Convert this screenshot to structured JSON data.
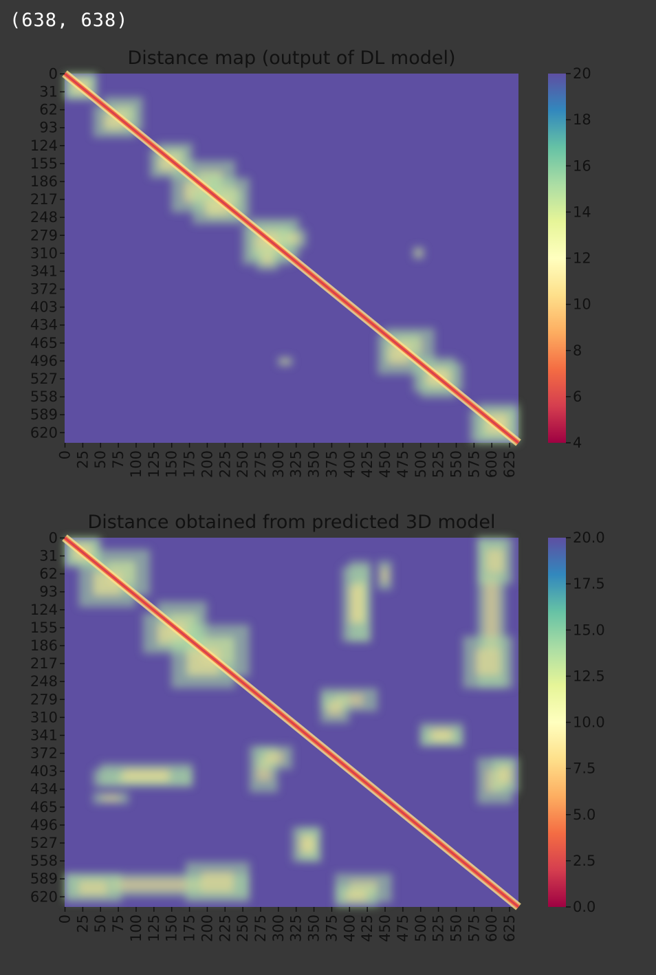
{
  "output_text": "(638, 638)",
  "chart_data": [
    {
      "type": "heatmap",
      "title": "Distance map (output of DL model)",
      "matrix_size": 638,
      "y_ticks": [
        0,
        31,
        62,
        93,
        124,
        155,
        186,
        217,
        248,
        279,
        310,
        341,
        372,
        403,
        434,
        465,
        496,
        527,
        558,
        589,
        620
      ],
      "x_ticks": [
        0,
        25,
        50,
        75,
        100,
        125,
        150,
        175,
        200,
        225,
        250,
        275,
        300,
        325,
        350,
        375,
        400,
        425,
        450,
        475,
        500,
        525,
        550,
        575,
        600,
        625
      ],
      "colorbar": {
        "min": 4,
        "max": 20,
        "ticks": [
          "4",
          "6",
          "8",
          "10",
          "12",
          "14",
          "16",
          "18",
          "20"
        ],
        "colormap": "Spectral"
      },
      "contact_regions": [
        {
          "x": [
            0,
            45
          ],
          "y": [
            0,
            45
          ]
        },
        {
          "x": [
            55,
            110
          ],
          "y": [
            40,
            100
          ]
        },
        {
          "x": [
            130,
            180
          ],
          "y": [
            120,
            170
          ]
        },
        {
          "x": [
            170,
            240
          ],
          "y": [
            150,
            220
          ]
        },
        {
          "x": [
            200,
            260
          ],
          "y": [
            180,
            250
          ]
        },
        {
          "x": [
            260,
            330
          ],
          "y": [
            250,
            320
          ]
        },
        {
          "x": [
            300,
            340
          ],
          "y": [
            270,
            300
          ]
        },
        {
          "x": [
            450,
            520
          ],
          "y": [
            440,
            500
          ]
        },
        {
          "x": [
            500,
            550
          ],
          "y": [
            490,
            560
          ]
        },
        {
          "x": [
            570,
            638
          ],
          "y": [
            580,
            638
          ]
        },
        {
          "x": [
            490,
            505
          ],
          "y": [
            300,
            320
          ]
        }
      ]
    },
    {
      "type": "heatmap",
      "title": "Distance obtained from predicted 3D model",
      "matrix_size": 638,
      "y_ticks": [
        0,
        31,
        62,
        93,
        124,
        155,
        186,
        217,
        248,
        279,
        310,
        341,
        372,
        403,
        434,
        465,
        496,
        527,
        558,
        589,
        620
      ],
      "x_ticks": [
        0,
        25,
        50,
        75,
        100,
        125,
        150,
        175,
        200,
        225,
        250,
        275,
        300,
        325,
        350,
        375,
        400,
        425,
        450,
        475,
        500,
        525,
        550,
        575,
        600,
        625
      ],
      "colorbar": {
        "min": 0,
        "max": 20,
        "ticks": [
          "0.0",
          "2.5",
          "5.0",
          "7.5",
          "10.0",
          "12.5",
          "15.0",
          "17.5",
          "20.0"
        ],
        "colormap": "Spectral"
      },
      "contact_regions": [
        {
          "x": [
            0,
            50
          ],
          "y": [
            0,
            50
          ]
        },
        {
          "x": [
            40,
            120
          ],
          "y": [
            20,
            100
          ]
        },
        {
          "x": [
            130,
            200
          ],
          "y": [
            110,
            190
          ]
        },
        {
          "x": [
            170,
            260
          ],
          "y": [
            150,
            240
          ]
        },
        {
          "x": [
            400,
            430
          ],
          "y": [
            40,
            180
          ]
        },
        {
          "x": [
            440,
            460
          ],
          "y": [
            40,
            90
          ]
        },
        {
          "x": [
            580,
            620
          ],
          "y": [
            0,
            260
          ]
        },
        {
          "x": [
            50,
            180
          ],
          "y": [
            390,
            430
          ]
        },
        {
          "x": [
            260,
            300
          ],
          "y": [
            360,
            440
          ]
        },
        {
          "x": [
            360,
            400
          ],
          "y": [
            270,
            320
          ]
        },
        {
          "x": [
            500,
            560
          ],
          "y": [
            330,
            360
          ]
        },
        {
          "x": [
            320,
            360
          ],
          "y": [
            500,
            560
          ]
        },
        {
          "x": [
            170,
            260
          ],
          "y": [
            560,
            630
          ]
        },
        {
          "x": [
            380,
            460
          ],
          "y": [
            580,
            630
          ]
        },
        {
          "x": [
            0,
            80
          ],
          "y": [
            580,
            630
          ]
        },
        {
          "x": [
            600,
            638
          ],
          "y": [
            380,
            440
          ]
        }
      ]
    }
  ]
}
